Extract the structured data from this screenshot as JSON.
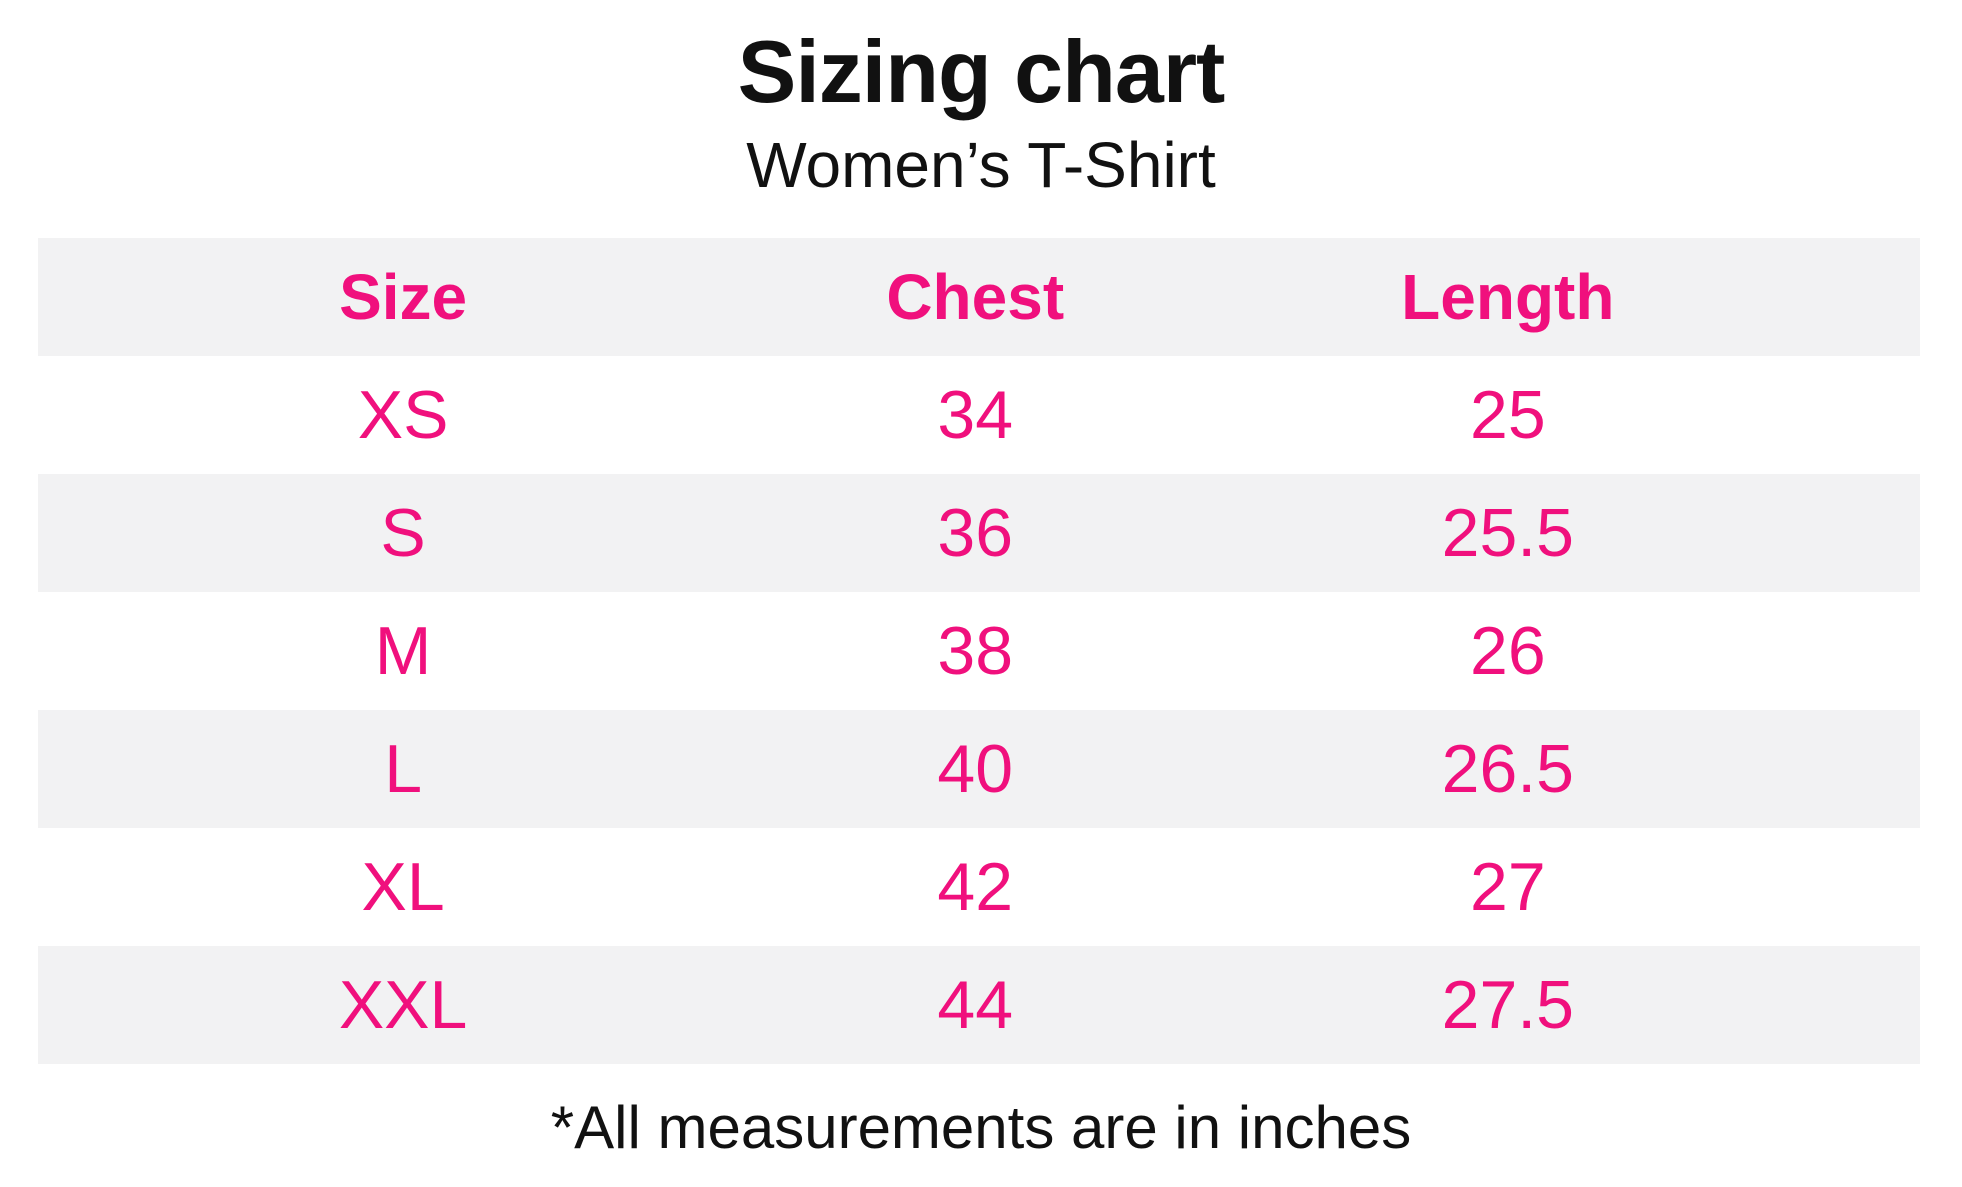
{
  "header": {
    "title": "Sizing chart",
    "subtitle": "Women’s T-Shirt"
  },
  "table": {
    "columns": [
      "Size",
      "Chest",
      "Length"
    ],
    "rows": [
      {
        "size": "XS",
        "chest": "34",
        "length": "25"
      },
      {
        "size": "S",
        "chest": "36",
        "length": "25.5"
      },
      {
        "size": "M",
        "chest": "38",
        "length": "26"
      },
      {
        "size": "L",
        "chest": "40",
        "length": "26.5"
      },
      {
        "size": "XL",
        "chest": "42",
        "length": "27"
      },
      {
        "size": "XXL",
        "chest": "44",
        "length": "27.5"
      }
    ]
  },
  "footnote": {
    "text": "*All measurements are in inches"
  },
  "colors": {
    "accent_pink": "#f0107d",
    "row_alt_gray": "#f2f2f3",
    "text_black": "#111111",
    "background": "#ffffff"
  },
  "chart_data": {
    "type": "table",
    "title": "Sizing chart",
    "subtitle": "Women’s T-Shirt",
    "columns": [
      "Size",
      "Chest",
      "Length"
    ],
    "rows": [
      [
        "XS",
        "34",
        "25"
      ],
      [
        "S",
        "36",
        "25.5"
      ],
      [
        "M",
        "38",
        "26"
      ],
      [
        "L",
        "40",
        "26.5"
      ],
      [
        "XL",
        "42",
        "27"
      ],
      [
        "XXL",
        "44",
        "27.5"
      ]
    ],
    "units": "inches",
    "footnote": "*All measurements are in inches",
    "layout_hints": {
      "alternating_row_background": true,
      "header_row_background": "#f2f2f3",
      "grid_lines": false,
      "text_alignment": "center"
    }
  }
}
